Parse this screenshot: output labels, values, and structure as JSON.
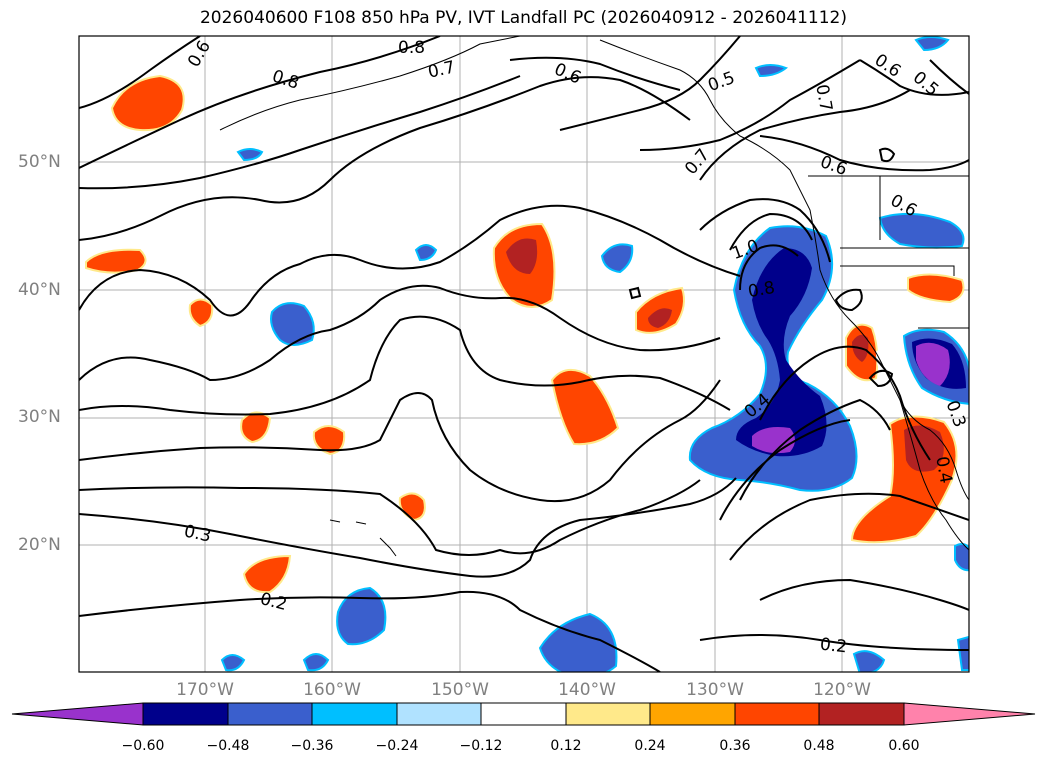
{
  "title": "2026040600 F108 850 hPa PV, IVT Landfall PC (2026040912 - 2026041112)",
  "latitude_labels": [
    "50°N",
    "40°N",
    "30°N",
    "20°N"
  ],
  "longitude_labels": [
    "170°W",
    "160°W",
    "150°W",
    "140°W",
    "130°W",
    "120°W"
  ],
  "contour_labels": [
    "0.6",
    "0.8",
    "0.8",
    "0.7",
    "0.6",
    "0.5",
    "0.6",
    "0.5",
    "0.7",
    "0.7",
    "0.6",
    "0.6",
    "1.0",
    "0.8",
    "0.4",
    "0.3",
    "0.2",
    "0.2",
    "0.4",
    "0.3"
  ],
  "colorbar": {
    "ticks": [
      "−0.60",
      "−0.48",
      "−0.36",
      "−0.24",
      "−0.12",
      "0.12",
      "0.24",
      "0.36",
      "0.48",
      "0.60"
    ],
    "colors": [
      "#9932CC",
      "#00008B",
      "#3A5FCD",
      "#00BFFF",
      "#B0E2FF",
      "#FFFFFF",
      "#FFE98A",
      "#FFA500",
      "#FF4500",
      "#B22222",
      "#FF82AB"
    ]
  }
}
